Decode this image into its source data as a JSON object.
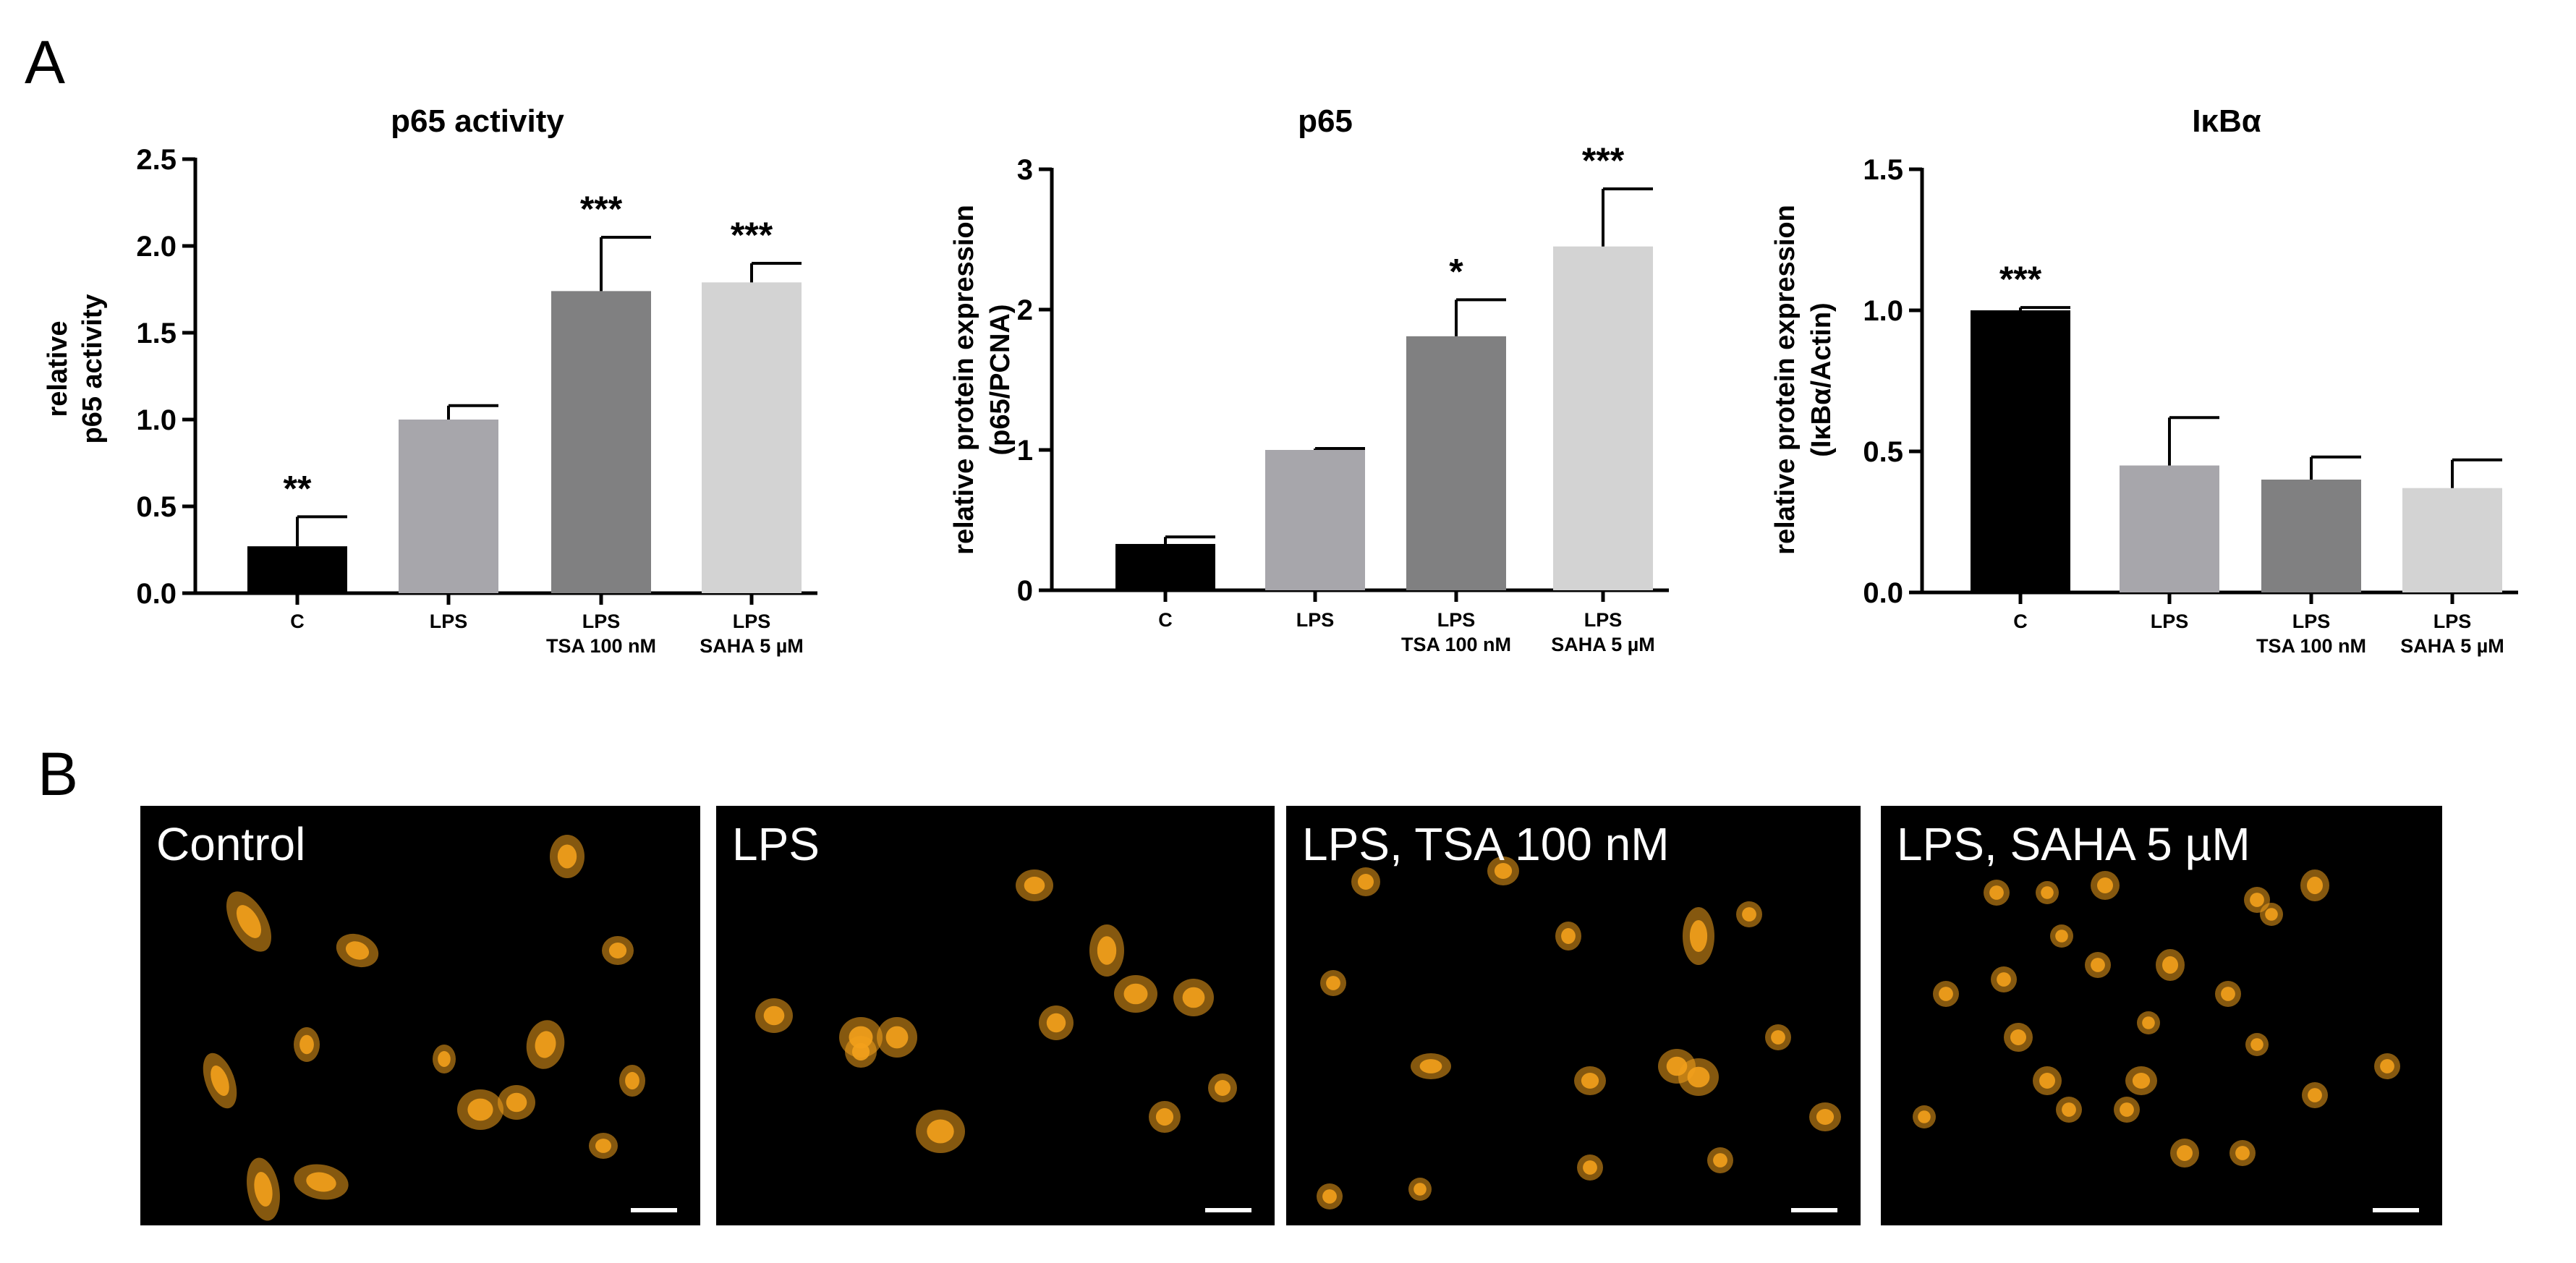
{
  "panels": {
    "a": "A",
    "b": "B"
  },
  "colors": {
    "C": "#000000",
    "LPS": "#a7a6ab",
    "TSA": "#808081",
    "SAHA": "#d3d3d3",
    "cell": "#f3a11c"
  },
  "chart_data": [
    {
      "type": "bar",
      "title": "p65 activity",
      "ylabel_lines": [
        "relative",
        "p65 activity"
      ],
      "ylim": [
        0,
        2.5
      ],
      "yticks": [
        "0.0",
        "0.5",
        "1.0",
        "1.5",
        "2.0",
        "2.5"
      ],
      "categories": [
        [
          "C"
        ],
        [
          "LPS"
        ],
        [
          "LPS",
          "TSA 100 nM"
        ],
        [
          "LPS",
          "SAHA 5 µM"
        ]
      ],
      "values": [
        0.27,
        1.0,
        1.74,
        1.79
      ],
      "errors": [
        0.17,
        0.08,
        0.31,
        0.11
      ],
      "significance": [
        "**",
        "",
        "***",
        "***"
      ]
    },
    {
      "type": "bar",
      "title": "p65",
      "ylabel_lines": [
        "relative protein expression",
        "(p65/PCNA)"
      ],
      "ylim": [
        0,
        3
      ],
      "yticks": [
        "0",
        "1",
        "2",
        "3"
      ],
      "categories": [
        [
          "C"
        ],
        [
          "LPS"
        ],
        [
          "LPS",
          "TSA 100 nM"
        ],
        [
          "LPS",
          "SAHA 5 µM"
        ]
      ],
      "values": [
        0.33,
        1.0,
        1.81,
        2.45
      ],
      "errors": [
        0.05,
        0.01,
        0.26,
        0.41
      ],
      "significance": [
        "",
        "",
        "*",
        "***"
      ]
    },
    {
      "type": "bar",
      "title": "IκBα",
      "ylabel_lines": [
        "relative protein expression",
        "(IκBα/Actin)"
      ],
      "ylim": [
        0,
        1.5
      ],
      "yticks": [
        "0.0",
        "0.5",
        "1.0",
        "1.5"
      ],
      "categories": [
        [
          "C"
        ],
        [
          "LPS"
        ],
        [
          "LPS",
          "TSA 100 nM"
        ],
        [
          "LPS",
          "SAHA 5 µM"
        ]
      ],
      "values": [
        1.0,
        0.45,
        0.4,
        0.37
      ],
      "errors": [
        0.01,
        0.17,
        0.08,
        0.1
      ],
      "significance": [
        "***",
        "",
        "",
        ""
      ]
    }
  ],
  "micrographs": [
    {
      "label": "Control"
    },
    {
      "label": "LPS"
    },
    {
      "label": "LPS, TSA 100 nM"
    },
    {
      "label": "LPS, SAHA 5 µM"
    }
  ]
}
